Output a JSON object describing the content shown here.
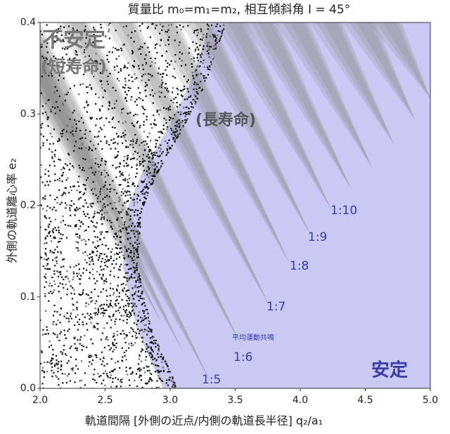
{
  "chart_data": {
    "type": "stability-map",
    "title": "質量比 m₀=m₁=m₂, 相互傾斜角 I = 45°",
    "x_label": "軌道間隔 [外側の近点/内側の軌道長半径]  q₂/a₁",
    "y_label": "外側の軌道離心率 e₂",
    "xlim": [
      2,
      5
    ],
    "xticks": [
      {
        "value": 2,
        "label": "2.0"
      },
      2.5,
      {
        "value": 3,
        "label": "3.0"
      },
      3.5,
      {
        "value": 4,
        "label": "4.0"
      },
      4.5,
      {
        "value": 5,
        "label": "5.0"
      }
    ],
    "ylim": [
      0,
      0.4
    ],
    "yticks": [
      {
        "value": 0,
        "label": "0.0"
      },
      0.1,
      0.2,
      0.3,
      0.4
    ],
    "annotations": [
      "不安定",
      "(短寿命)",
      "(長寿命)",
      "安定",
      "平均運動共鳴",
      "1:5",
      "1:6",
      "1:7",
      "1:8",
      "1:9",
      "1:10"
    ]
  }
}
